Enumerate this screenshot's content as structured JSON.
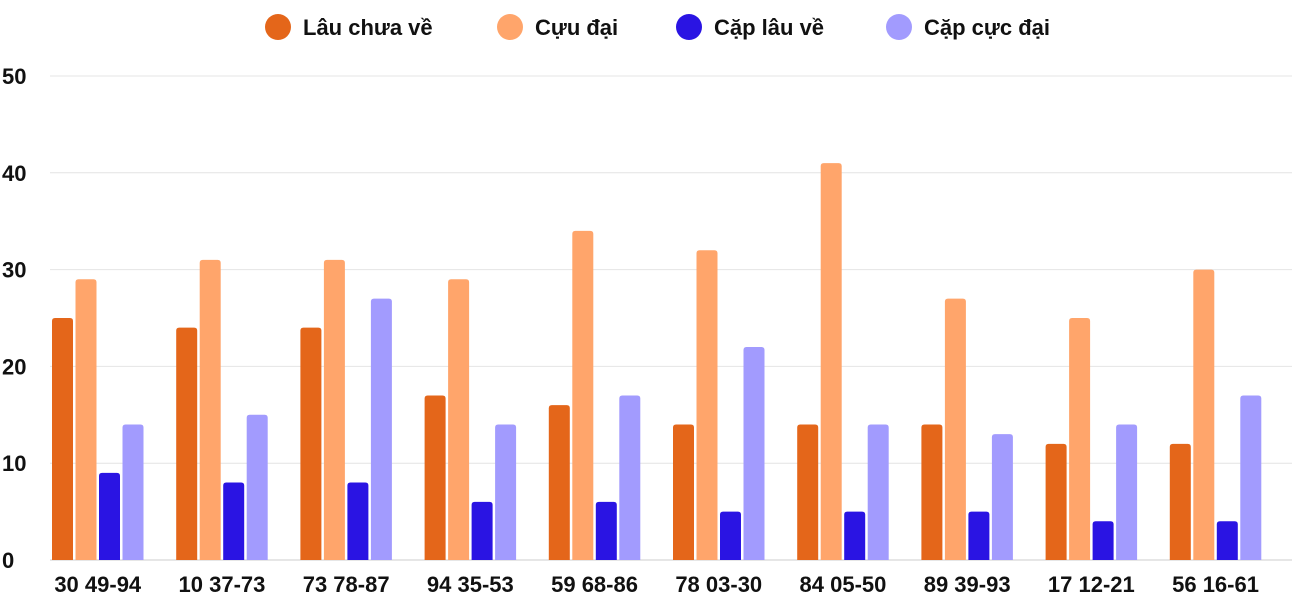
{
  "chart_data": {
    "type": "bar",
    "title": "",
    "xlabel": "",
    "ylabel": "",
    "ylim": [
      0,
      50
    ],
    "yticks": [
      0,
      10,
      20,
      30,
      40,
      50
    ],
    "grid": true,
    "legend_position": "top",
    "categories": [
      "30 49-94",
      "10 37-73",
      "73 78-87",
      "94 35-53",
      "59 68-86",
      "78 03-30",
      "84 05-50",
      "89 39-93",
      "17 12-21",
      "56 16-61"
    ],
    "series": [
      {
        "name": "Lâu chưa về",
        "color": "#E4661A",
        "values": [
          25,
          24,
          24,
          17,
          16,
          14,
          14,
          14,
          12,
          12
        ]
      },
      {
        "name": "Cựu đại",
        "color": "#FFA56B",
        "values": [
          29,
          31,
          31,
          29,
          34,
          32,
          41,
          27,
          25,
          30
        ]
      },
      {
        "name": "Cặp lâu về",
        "color": "#2A14E3",
        "values": [
          9,
          8,
          8,
          6,
          6,
          5,
          5,
          5,
          4,
          4
        ]
      },
      {
        "name": "Cặp cực đại",
        "color": "#A29BFE",
        "values": [
          14,
          15,
          27,
          14,
          17,
          22,
          14,
          13,
          14,
          17
        ]
      }
    ]
  }
}
